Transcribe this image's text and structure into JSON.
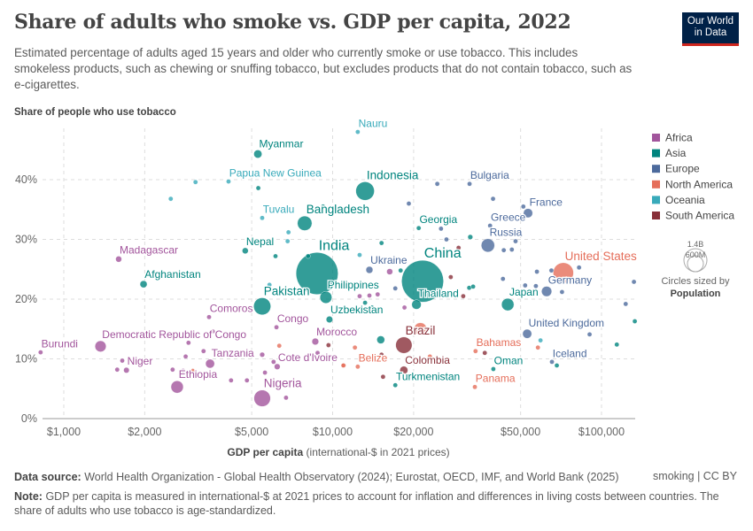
{
  "header": {
    "title": "Share of adults who smoke vs. GDP per capita, 2022",
    "subtitle": "Estimated percentage of adults aged 15 years and older who currently smoke or use tobacco. This includes smokeless products, such as chewing or snuffing tobacco, but excludes products that do not contain tobacco, such as e-cigarettes.",
    "logo_text": "Our World in Data"
  },
  "footer": {
    "source_label": "Data source:",
    "source": "World Health Organization - Global Health Observatory (2024); Eurostat, OECD, IMF, and World Bank (2025)",
    "license": "smoking | CC BY",
    "note_label": "Note:",
    "note": "GDP per capita is measured in international-$ at 2021 prices to account for inflation and differences in living costs between countries. The share of adults who use tobacco is age-standardized."
  },
  "chart_data": {
    "type": "scatter",
    "title": "Share of adults who smoke vs. GDP per capita, 2022",
    "ylabel": "Share of people who use tobacco",
    "xlabel_bold": "GDP per capita",
    "xlabel_rest": "(international-$ in 2021 prices)",
    "x_scale": "log",
    "xlim": [
      830,
      133000
    ],
    "ylim": [
      0,
      48.6
    ],
    "x_ticks": [
      {
        "v": 1000,
        "label": "$1,000"
      },
      {
        "v": 2000,
        "label": "$2,000"
      },
      {
        "v": 5000,
        "label": "$5,000"
      },
      {
        "v": 10000,
        "label": "$10,000"
      },
      {
        "v": 20000,
        "label": "$20,000"
      },
      {
        "v": 50000,
        "label": "$50,000"
      },
      {
        "v": 100000,
        "label": "$100,000"
      }
    ],
    "y_ticks": [
      {
        "v": 0,
        "label": "0%"
      },
      {
        "v": 10,
        "label": "10%"
      },
      {
        "v": 20,
        "label": "20%"
      },
      {
        "v": 30,
        "label": "30%"
      },
      {
        "v": 40,
        "label": "40%"
      }
    ],
    "grid": true,
    "legend_position": "right",
    "regions": [
      {
        "name": "Africa",
        "color": "#a2559c"
      },
      {
        "name": "Asia",
        "color": "#00847e"
      },
      {
        "name": "Europe",
        "color": "#4c6a9c"
      },
      {
        "name": "North America",
        "color": "#e56e5a"
      },
      {
        "name": "Oceania",
        "color": "#38aaba"
      },
      {
        "name": "South America",
        "color": "#883039"
      }
    ],
    "size_legend": {
      "title": "Circles sized by",
      "variable": "Population",
      "large": "1.4B",
      "small": "600M"
    },
    "points": [
      {
        "label": "India",
        "region": "Asia",
        "x": 8750,
        "y": 24.3,
        "pop": 1420
      },
      {
        "label": "China",
        "region": "Asia",
        "x": 21600,
        "y": 23.0,
        "pop": 1410
      },
      {
        "label": "Indonesia",
        "region": "Asia",
        "x": 13200,
        "y": 38.1,
        "pop": 276
      },
      {
        "label": "Myanmar",
        "region": "Asia",
        "x": 5270,
        "y": 44.3,
        "pop": 54
      },
      {
        "label": "Bangladesh",
        "region": "Asia",
        "x": 7870,
        "y": 32.7,
        "pop": 171
      },
      {
        "label": "Nepal",
        "region": "Asia",
        "x": 4730,
        "y": 28.1,
        "pop": 30
      },
      {
        "label": "Afghanistan",
        "region": "Asia",
        "x": 1980,
        "y": 22.5,
        "pop": 41
      },
      {
        "label": "Pakistan",
        "region": "Asia",
        "x": 5470,
        "y": 18.8,
        "pop": 236
      },
      {
        "label": "Philippines",
        "region": "Asia",
        "x": 9440,
        "y": 20.3,
        "pop": 116
      },
      {
        "label": "Uzbekistan",
        "region": "Asia",
        "x": 9730,
        "y": 16.6,
        "pop": 35
      },
      {
        "label": "Georgia",
        "region": "Asia",
        "x": 20900,
        "y": 31.9,
        "pop": 4
      },
      {
        "label": "Thailand",
        "region": "Asia",
        "x": 20500,
        "y": 19.1,
        "pop": 72
      },
      {
        "label": "Japan",
        "region": "Asia",
        "x": 44800,
        "y": 19.1,
        "pop": 124
      },
      {
        "label": "Turkmenistan",
        "region": "Asia",
        "x": 17100,
        "y": 5.6,
        "pop": 6
      },
      {
        "label": "Oman",
        "region": "Asia",
        "x": 39600,
        "y": 8.3,
        "pop": 5
      },
      {
        "label": "Nauru",
        "region": "Oceania",
        "x": 12400,
        "y": 48.0,
        "pop": 0.01
      },
      {
        "label": "Papua New Guinea",
        "region": "Oceania",
        "x": 4100,
        "y": 39.7,
        "pop": 10
      },
      {
        "label": "Tuvalu",
        "region": "Oceania",
        "x": 5470,
        "y": 33.6,
        "pop": 0.01
      },
      {
        "label": "Bulgaria",
        "region": "Europe",
        "x": 32300,
        "y": 39.3,
        "pop": 6.5
      },
      {
        "label": "France",
        "region": "Europe",
        "x": 53300,
        "y": 34.4,
        "pop": 68
      },
      {
        "label": "Greece",
        "region": "Europe",
        "x": 38500,
        "y": 32.3,
        "pop": 10
      },
      {
        "label": "Russia",
        "region": "Europe",
        "x": 37800,
        "y": 29.0,
        "pop": 144
      },
      {
        "label": "Ukraine",
        "region": "Europe",
        "x": 13700,
        "y": 24.9,
        "pop": 39
      },
      {
        "label": "Germany",
        "region": "Europe",
        "x": 62500,
        "y": 21.3,
        "pop": 84
      },
      {
        "label": "United Kingdom",
        "region": "Europe",
        "x": 52900,
        "y": 14.2,
        "pop": 67
      },
      {
        "label": "Iceland",
        "region": "Europe",
        "x": 65400,
        "y": 9.5,
        "pop": 0.4
      },
      {
        "label": "United States",
        "region": "North America",
        "x": 72100,
        "y": 24.4,
        "pop": 333
      },
      {
        "label": "Belize",
        "region": "North America",
        "x": 12400,
        "y": 8.7,
        "pop": 0.4
      },
      {
        "label": "Bahamas",
        "region": "North America",
        "x": 34000,
        "y": 11.3,
        "pop": 0.4
      },
      {
        "label": "Panama",
        "region": "North America",
        "x": 33800,
        "y": 5.3,
        "pop": 4.4
      },
      {
        "label": "Brazil",
        "region": "South America",
        "x": 18400,
        "y": 12.3,
        "pop": 215
      },
      {
        "label": "Colombia",
        "region": "South America",
        "x": 18400,
        "y": 8.1,
        "pop": 52
      },
      {
        "label": "Madagascar",
        "region": "Africa",
        "x": 1600,
        "y": 26.7,
        "pop": 30
      },
      {
        "label": "Comoros",
        "region": "Africa",
        "x": 3470,
        "y": 17.0,
        "pop": 0.8
      },
      {
        "label": "Congo",
        "region": "Africa",
        "x": 6180,
        "y": 15.3,
        "pop": 6
      },
      {
        "label": "Morocco",
        "region": "Africa",
        "x": 8620,
        "y": 12.9,
        "pop": 37
      },
      {
        "label": "Democratic Republic of Congo",
        "region": "Africa",
        "x": 1370,
        "y": 12.1,
        "pop": 100
      },
      {
        "label": "Burundi",
        "region": "Africa",
        "x": 820,
        "y": 11.1,
        "pop": 13
      },
      {
        "label": "Tanzania",
        "region": "Africa",
        "x": 3500,
        "y": 9.2,
        "pop": 65
      },
      {
        "label": "Cote d'Ivoire",
        "region": "Africa",
        "x": 6220,
        "y": 8.7,
        "pop": 28
      },
      {
        "label": "Niger",
        "region": "Africa",
        "x": 1710,
        "y": 8.1,
        "pop": 26
      },
      {
        "label": "Ethiopia",
        "region": "Africa",
        "x": 2640,
        "y": 5.3,
        "pop": 123
      },
      {
        "label": "Nigeria",
        "region": "Africa",
        "x": 5470,
        "y": 3.4,
        "pop": 219
      },
      {
        "region": "Oceania",
        "x": 3090,
        "y": 39.6
      },
      {
        "region": "Oceania",
        "x": 2500,
        "y": 36.8
      },
      {
        "region": "Asia",
        "x": 5290,
        "y": 38.6
      },
      {
        "region": "Asia",
        "x": 9210,
        "y": 35.5
      },
      {
        "region": "Oceania",
        "x": 6850,
        "y": 31.2
      },
      {
        "region": "Oceania",
        "x": 6800,
        "y": 29.7
      },
      {
        "region": "Asia",
        "x": 6130,
        "y": 27.2
      },
      {
        "region": "Asia",
        "x": 8100,
        "y": 27.2
      },
      {
        "region": "Europe",
        "x": 24500,
        "y": 39.3
      },
      {
        "region": "Europe",
        "x": 19200,
        "y": 36.0
      },
      {
        "region": "Europe",
        "x": 39500,
        "y": 36.8
      },
      {
        "region": "Europe",
        "x": 51200,
        "y": 35.5
      },
      {
        "region": "Europe",
        "x": 25300,
        "y": 31.8
      },
      {
        "region": "Europe",
        "x": 26500,
        "y": 30.0
      },
      {
        "region": "Asia",
        "x": 32500,
        "y": 30.4,
        "pop": 20
      },
      {
        "region": "Asia",
        "x": 15200,
        "y": 29.4
      },
      {
        "region": "South America",
        "x": 29400,
        "y": 28.6
      },
      {
        "region": "Oceania",
        "x": 12600,
        "y": 27.4
      },
      {
        "region": "Europe",
        "x": 43300,
        "y": 28.2
      },
      {
        "region": "Europe",
        "x": 46400,
        "y": 28.3,
        "pop": 10
      },
      {
        "region": "Europe",
        "x": 47900,
        "y": 29.7
      },
      {
        "region": "Africa",
        "x": 16300,
        "y": 24.6,
        "pop": 30
      },
      {
        "region": "Asia",
        "x": 17900,
        "y": 24.8
      },
      {
        "region": "South America",
        "x": 27500,
        "y": 23.7,
        "pop": 10
      },
      {
        "region": "Europe",
        "x": 43000,
        "y": 23.4,
        "pop": 10
      },
      {
        "region": "Europe",
        "x": 57500,
        "y": 24.6
      },
      {
        "region": "Europe",
        "x": 65100,
        "y": 24.8
      },
      {
        "region": "Europe",
        "x": 82500,
        "y": 25.3
      },
      {
        "region": "Europe",
        "x": 132000,
        "y": 22.9
      },
      {
        "region": "Europe",
        "x": 17100,
        "y": 21.8
      },
      {
        "region": "Africa",
        "x": 13700,
        "y": 20.6,
        "pop": 15
      },
      {
        "region": "Africa",
        "x": 12600,
        "y": 20.5
      },
      {
        "region": "Africa",
        "x": 14700,
        "y": 20.8
      },
      {
        "region": "South America",
        "x": 30600,
        "y": 20.5
      },
      {
        "region": "Asia",
        "x": 32200,
        "y": 21.9,
        "pop": 8
      },
      {
        "region": "Asia",
        "x": 33300,
        "y": 22.1
      },
      {
        "region": "Europe",
        "x": 52000,
        "y": 22.3,
        "pop": 15
      },
      {
        "region": "Europe",
        "x": 57000,
        "y": 22.2
      },
      {
        "region": "Europe",
        "x": 71300,
        "y": 21.2
      },
      {
        "region": "Asia",
        "x": 13200,
        "y": 19.4,
        "pop": 12
      },
      {
        "region": "Asia",
        "x": 14000,
        "y": 18.6
      },
      {
        "region": "Africa",
        "x": 18500,
        "y": 18.6
      },
      {
        "region": "Europe",
        "x": 123000,
        "y": 19.2
      },
      {
        "region": "Asia",
        "x": 133000,
        "y": 16.3
      },
      {
        "region": "Asia",
        "x": 15100,
        "y": 13.2,
        "pop": 50
      },
      {
        "region": "North America",
        "x": 12100,
        "y": 11.9
      },
      {
        "region": "North America",
        "x": 21200,
        "y": 15.0,
        "pop": 128
      },
      {
        "region": "South America",
        "x": 15200,
        "y": 10.7
      },
      {
        "region": "North America",
        "x": 23000,
        "y": 10.4
      },
      {
        "region": "South America",
        "x": 36800,
        "y": 11.0
      },
      {
        "region": "Oceania",
        "x": 59300,
        "y": 13.1,
        "pop": 5
      },
      {
        "region": "North America",
        "x": 58000,
        "y": 11.9,
        "pop": 5
      },
      {
        "region": "Europe",
        "x": 90300,
        "y": 14.1
      },
      {
        "region": "Asia",
        "x": 114000,
        "y": 12.4
      },
      {
        "region": "Asia",
        "x": 68200,
        "y": 8.9
      },
      {
        "region": "North America",
        "x": 11000,
        "y": 8.9
      },
      {
        "region": "South America",
        "x": 15400,
        "y": 7.0
      },
      {
        "region": "Oceania",
        "x": 5820,
        "y": 22.4
      },
      {
        "region": "Africa",
        "x": 3580,
        "y": 14.6
      },
      {
        "region": "Africa",
        "x": 2910,
        "y": 12.7
      },
      {
        "region": "North America",
        "x": 6330,
        "y": 12.2
      },
      {
        "region": "South America",
        "x": 9650,
        "y": 12.3
      },
      {
        "region": "Africa",
        "x": 3310,
        "y": 11.3
      },
      {
        "region": "Africa",
        "x": 2840,
        "y": 10.4
      },
      {
        "region": "Africa",
        "x": 1650,
        "y": 9.7
      },
      {
        "region": "Africa",
        "x": 5470,
        "y": 10.7,
        "pop": 20
      },
      {
        "region": "Africa",
        "x": 8790,
        "y": 11.0
      },
      {
        "region": "Africa",
        "x": 6030,
        "y": 9.5
      },
      {
        "region": "North America",
        "x": 10960,
        "y": 8.9
      },
      {
        "region": "Africa",
        "x": 1580,
        "y": 8.2
      },
      {
        "region": "Africa",
        "x": 2540,
        "y": 8.2
      },
      {
        "region": "Africa",
        "x": 2780,
        "y": 8.0
      },
      {
        "region": "North America",
        "x": 3020,
        "y": 8.0
      },
      {
        "region": "Africa",
        "x": 5600,
        "y": 7.7
      },
      {
        "region": "Africa",
        "x": 4190,
        "y": 6.4
      },
      {
        "region": "Africa",
        "x": 4800,
        "y": 6.4
      },
      {
        "region": "Africa",
        "x": 6710,
        "y": 3.5
      }
    ]
  }
}
